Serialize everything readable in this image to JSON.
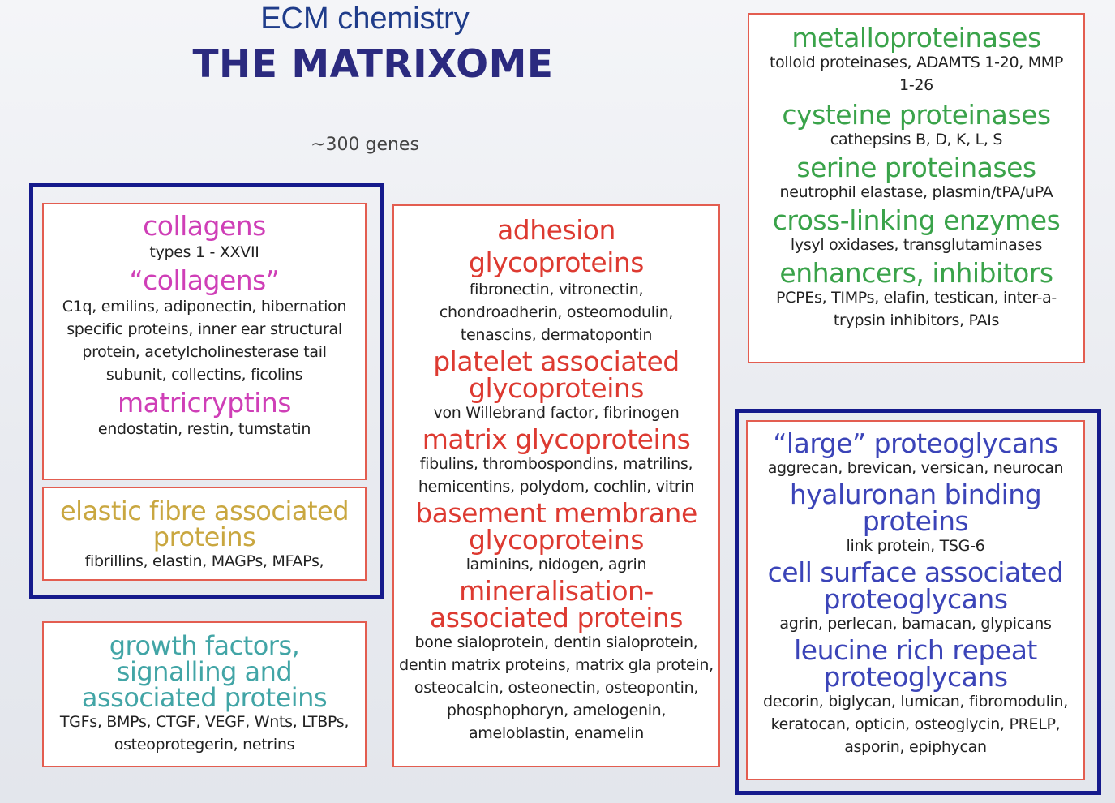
{
  "header": {
    "subtitle": "ECM chemistry",
    "title": "THE MATRIXOME",
    "gene_count": "~300 genes"
  },
  "collagens_box": {
    "heading1": "collagens",
    "text1": "types 1 - XXVII",
    "heading2": "“collagens”",
    "text2": "C1q, emilins, adiponectin, hibernation specific proteins, inner ear structural protein, acetylcholinesterase tail subunit, collectins, ficolins",
    "heading3": "matricryptins",
    "text3": "endostatin, restin, tumstatin"
  },
  "elastic_box": {
    "heading": "elastic fibre associated proteins",
    "text": "fibrillins, elastin, MAGPs, MFAPs,"
  },
  "growth_box": {
    "heading": "growth factors, signalling and associated proteins",
    "text": "TGFs, BMPs, CTGF, VEGF, Wnts, LTBPs, osteoprotegerin, netrins"
  },
  "glyco_box": {
    "heading1": "adhesion glycoproteins",
    "text1": "fibronectin, vitronectin, chondroadherin, osteomodulin, tenascins, dermatopontin",
    "heading2": "platelet associated glycoproteins",
    "text2": "von Willebrand factor, fibrinogen",
    "heading3": "matrix glycoproteins",
    "text3": "fibulins, thrombospondins, matrilins, hemicentins, polydom, cochlin, vitrin",
    "heading4": "basement membrane glycoproteins",
    "text4": "laminins, nidogen, agrin",
    "heading5": "mineralisation-associated proteins",
    "text5": "bone sialoprotein, dentin sialoprotein, dentin matrix proteins, matrix gla protein, osteocalcin, osteonectin, osteopontin, phosphophoryn, amelogenin, ameloblastin, enamelin"
  },
  "enzyme_box": {
    "heading1": "metalloproteinases",
    "text1": "tolloid proteinases, ADAMTS 1-20, MMP 1-26",
    "heading2": "cysteine proteinases",
    "text2": "cathepsins B, D, K, L, S",
    "heading3": "serine proteinases",
    "text3": "neutrophil elastase, plasmin/tPA/uPA",
    "heading4": "cross-linking enzymes",
    "text4": "lysyl oxidases, transglutaminases",
    "heading5": "enhancers, inhibitors",
    "text5": "PCPEs, TIMPs, elafin, testican, inter-a-trypsin inhibitors, PAIs"
  },
  "proteoglycan_box": {
    "heading1": "“large” proteoglycans",
    "text1": "aggrecan, brevican, versican, neurocan",
    "heading2": "hyaluronan binding proteins",
    "text2": "link protein, TSG-6",
    "heading3": "cell surface associated proteoglycans",
    "text3": "agrin, perlecan, bamacan, glypicans",
    "heading4": "leucine rich repeat proteoglycans",
    "text4": "decorin, biglycan, lumican, fibromodulin, keratocan, opticin, osteoglycin, PRELP, asporin, epiphycan"
  },
  "colors": {
    "box_border": "#e35d50",
    "frame_border": "#151a8c",
    "title": "#2b2a7f",
    "subtitle": "#1f3c8a",
    "collagen_heading": "#cf3fb7",
    "elastic_heading": "#c9a740",
    "growth_heading": "#42a5a6",
    "glyco_heading": "#dd3a31",
    "enzyme_heading": "#3aa34a",
    "proteoglycan_heading": "#3b44b8"
  }
}
